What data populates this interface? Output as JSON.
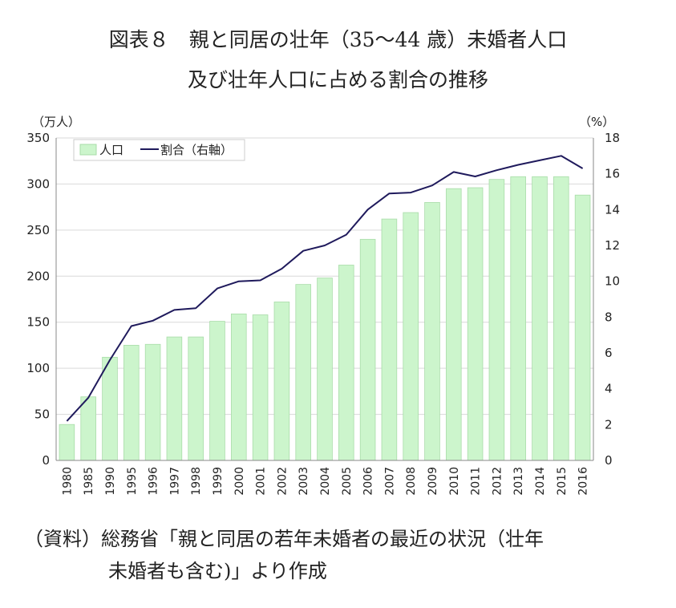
{
  "title_line1": "図表８　親と同居の壮年（35～44 歳）未婚者人口",
  "title_line2": "及び壮年人口に占める割合の推移",
  "source_line1": "（資料）総務省「親と同居の若年未婚者の最近の状況（壮年",
  "source_line2": "未婚者も含む)」より作成",
  "chart_data": {
    "type": "bar+line",
    "categories": [
      "1980",
      "1985",
      "1990",
      "1995",
      "1996",
      "1997",
      "1998",
      "1999",
      "2000",
      "2001",
      "2002",
      "2003",
      "2004",
      "2005",
      "2006",
      "2007",
      "2008",
      "2009",
      "2010",
      "2011",
      "2012",
      "2013",
      "2014",
      "2015",
      "2016"
    ],
    "series": [
      {
        "name": "人口",
        "type": "bar",
        "axis": "left",
        "color": "#ccf5cc",
        "stroke": "#a9dca9",
        "values": [
          39,
          69,
          112,
          125,
          126,
          134,
          134,
          151,
          159,
          158,
          172,
          191,
          198,
          212,
          240,
          262,
          269,
          280,
          295,
          296,
          305,
          308,
          308,
          308,
          288
        ]
      },
      {
        "name": "割合（右軸）",
        "type": "line",
        "axis": "right",
        "color": "#1f1a5c",
        "values": [
          2.2,
          3.5,
          5.6,
          7.5,
          7.8,
          8.4,
          8.5,
          9.6,
          10.0,
          10.05,
          10.7,
          11.7,
          12.0,
          12.6,
          14.0,
          14.9,
          14.95,
          15.35,
          16.1,
          15.85,
          16.2,
          16.5,
          16.75,
          17.0,
          16.3
        ]
      }
    ],
    "y_left": {
      "unit_label": "（万人）",
      "ylim": [
        0,
        350
      ],
      "ticks": [
        "0",
        "50",
        "100",
        "150",
        "200",
        "250",
        "300",
        "350"
      ]
    },
    "y_right": {
      "unit_label": "（%）",
      "ylim": [
        0,
        18
      ],
      "ticks": [
        "0",
        "2",
        "4",
        "6",
        "8",
        "10",
        "12",
        "14",
        "16",
        "18"
      ]
    },
    "legend": {
      "placement": "top-left",
      "entries": [
        "人口",
        "割合（右軸）"
      ]
    },
    "grid": "horizontal"
  }
}
